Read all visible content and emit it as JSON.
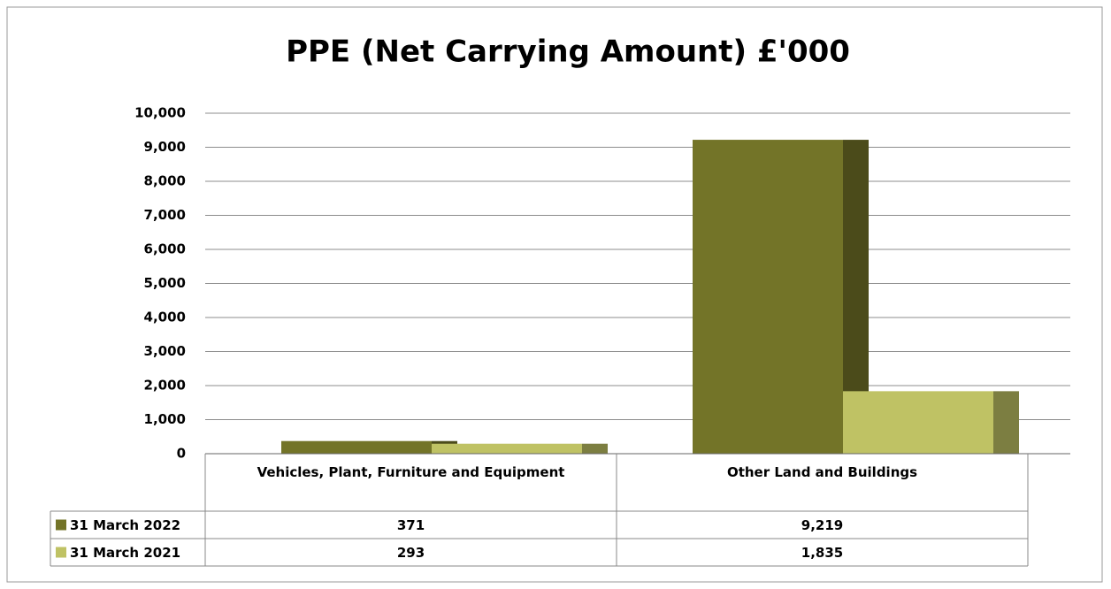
{
  "chart_data": {
    "type": "bar",
    "title": "PPE (Net Carrying Amount) £'000",
    "categories": [
      "Vehicles, Plant, Furniture and Equipment",
      "Other Land and Buildings"
    ],
    "series": [
      {
        "name": "31 March 2022",
        "color": "#737428",
        "values": [
          371,
          9219
        ],
        "value_labels": [
          "371",
          "9,219"
        ]
      },
      {
        "name": "31 March 2021",
        "color": "#bfc264",
        "values": [
          293,
          1835
        ],
        "value_labels": [
          "293",
          "1,835"
        ]
      }
    ],
    "ylim": [
      0,
      10000
    ],
    "yticks": [
      0,
      {
        "value": 1000,
        "label": "1,000"
      },
      {
        "value": 2000,
        "label": "2,000"
      },
      {
        "value": 3000,
        "label": "3,000"
      },
      {
        "value": 4000,
        "label": "4,000"
      },
      {
        "value": 5000,
        "label": "5,000"
      },
      {
        "value": 6000,
        "label": "6,000"
      },
      {
        "value": 7000,
        "label": "7,000"
      },
      {
        "value": 8000,
        "label": "8,000"
      },
      {
        "value": 9000,
        "label": "9,000"
      },
      {
        "value": 10000,
        "label": "10,000"
      }
    ],
    "grid": true
  }
}
